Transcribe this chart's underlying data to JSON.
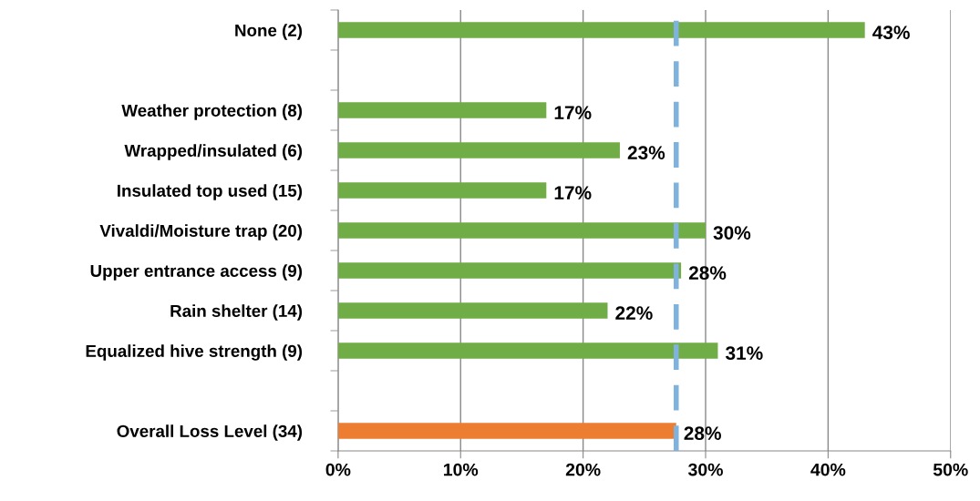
{
  "chart_data": {
    "type": "bar",
    "orientation": "horizontal",
    "categories": [
      "None (2)",
      null,
      "Weather protection (8)",
      "Wrapped/insulated (6)",
      "Insulated top used (15)",
      "Vivaldi/Moisture trap (20)",
      "Upper entrance access (9)",
      "Rain shelter (14)",
      "Equalized hive strength (9)",
      null,
      "Overall Loss Level (34)"
    ],
    "values": [
      43,
      null,
      17,
      23,
      17,
      30,
      28,
      22,
      31,
      null,
      27.6
    ],
    "colors": [
      "#70ad47",
      null,
      "#70ad47",
      "#70ad47",
      "#70ad47",
      "#70ad47",
      "#70ad47",
      "#70ad47",
      "#70ad47",
      null,
      "#ed7d31"
    ],
    "value_labels": [
      "43%",
      null,
      "17%",
      "23%",
      "17%",
      "30%",
      "28%",
      "22%",
      "31%",
      null,
      "28%"
    ],
    "xlim": [
      0,
      50
    ],
    "xticks": [
      {
        "value": 0,
        "label": "0%"
      },
      {
        "value": 10,
        "label": "10%"
      },
      {
        "value": 20,
        "label": "20%"
      },
      {
        "value": 30,
        "label": "30%"
      },
      {
        "value": 40,
        "label": "40%"
      },
      {
        "value": 50,
        "label": "50%"
      }
    ],
    "ref_lines": [
      {
        "axis": "x",
        "value": 27.6,
        "color": "#7fb2dd",
        "line_style": "dashed"
      }
    ],
    "grid": "x",
    "legend": false
  }
}
